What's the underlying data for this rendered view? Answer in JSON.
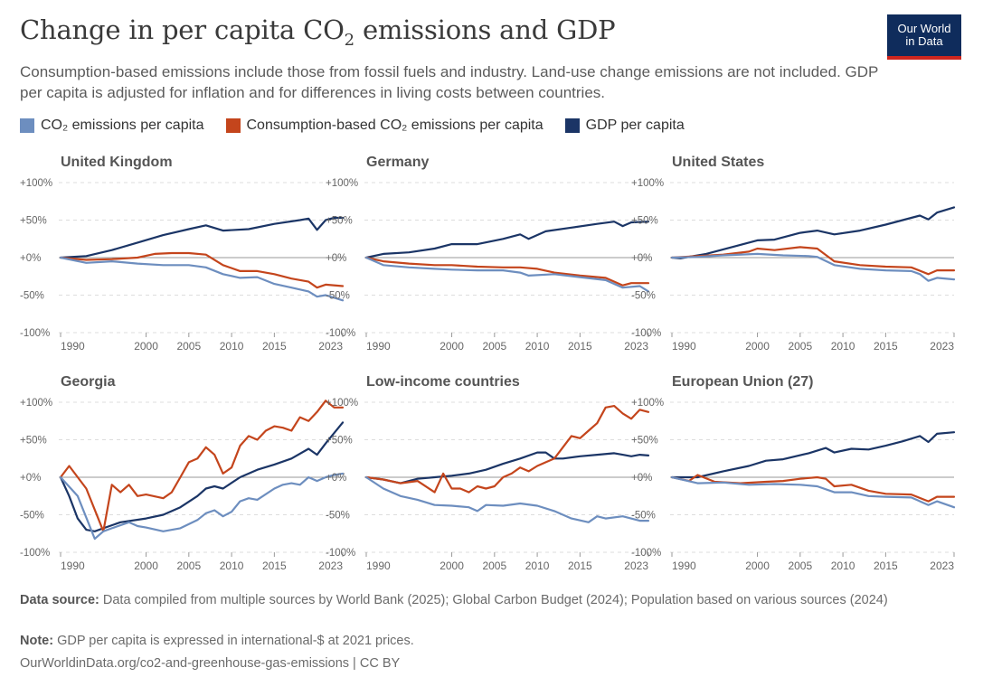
{
  "header": {
    "title_main": "Change in per capita CO",
    "title_sub": "2",
    "title_rest": " emissions and GDP",
    "subtitle": "Consumption-based emissions include those from fossil fuels and industry. Land-use change emissions are not included. GDP per capita is adjusted for inflation and for differences in living costs between countries.",
    "logo_line1": "Our World",
    "logo_line2": "in Data"
  },
  "legend": [
    {
      "label": "CO₂ emissions per capita",
      "color": "#6d8ebf"
    },
    {
      "label": "Consumption-based CO₂ emissions per capita",
      "color": "#c4451c"
    },
    {
      "label": "GDP per capita",
      "color": "#1b3566"
    }
  ],
  "footer": {
    "source_label": "Data source:",
    "source_text": "Data compiled from multiple sources by World Bank (2025); Global Carbon Budget (2024); Population based on various sources (2024)",
    "note_label": "Note:",
    "note_text": "GDP per capita is expressed in international-$ at 2021 prices.",
    "url": "OurWorldinData.org/co2-and-greenhouse-gas-emissions | CC BY"
  },
  "colors": {
    "co2": "#6d8ebf",
    "consumption": "#c4451c",
    "gdp": "#1b3566",
    "grid": "#dddddd",
    "zero": "#999999"
  },
  "chart_data": [
    {
      "type": "line",
      "title": "United Kingdom",
      "x_ticks": [
        "1990",
        "2000",
        "2005",
        "2010",
        "2015",
        "2023"
      ],
      "y_ticks": [
        "+100%",
        "+50%",
        "+0%",
        "-50%",
        "-100%"
      ],
      "ylim": [
        -100,
        100
      ],
      "xlim": [
        1990,
        2023
      ],
      "series": [
        {
          "name": "GDP per capita",
          "x": [
            1990,
            1993,
            1996,
            1999,
            2002,
            2005,
            2007,
            2009,
            2012,
            2015,
            2018,
            2019,
            2020,
            2021,
            2022,
            2023
          ],
          "y": [
            0,
            2,
            10,
            20,
            30,
            38,
            43,
            36,
            38,
            45,
            50,
            52,
            37,
            50,
            53,
            53
          ]
        },
        {
          "name": "Consumption-based CO₂ emissions per capita",
          "x": [
            1990,
            1993,
            1996,
            1999,
            2001,
            2003,
            2005,
            2007,
            2009,
            2011,
            2013,
            2015,
            2017,
            2019,
            2020,
            2021,
            2023
          ],
          "y": [
            0,
            -3,
            -2,
            0,
            5,
            6,
            6,
            4,
            -10,
            -18,
            -18,
            -22,
            -28,
            -32,
            -40,
            -36,
            -38
          ]
        },
        {
          "name": "CO₂ emissions per capita",
          "x": [
            1990,
            1993,
            1996,
            1999,
            2002,
            2005,
            2007,
            2009,
            2011,
            2013,
            2015,
            2017,
            2019,
            2020,
            2021,
            2023
          ],
          "y": [
            0,
            -7,
            -5,
            -8,
            -10,
            -10,
            -13,
            -22,
            -27,
            -26,
            -35,
            -40,
            -45,
            -52,
            -50,
            -57
          ]
        }
      ]
    },
    {
      "type": "line",
      "title": "Germany",
      "x_ticks": [
        "1990",
        "2000",
        "2005",
        "2010",
        "2015",
        "2023"
      ],
      "y_ticks": [
        "+100%",
        "+50%",
        "+0%",
        "-50%",
        "-100%"
      ],
      "ylim": [
        -100,
        100
      ],
      "xlim": [
        1990,
        2023
      ],
      "series": [
        {
          "name": "GDP per capita",
          "x": [
            1990,
            1992,
            1995,
            1998,
            2000,
            2003,
            2006,
            2008,
            2009,
            2011,
            2014,
            2017,
            2019,
            2020,
            2021,
            2023
          ],
          "y": [
            0,
            5,
            7,
            12,
            18,
            18,
            25,
            31,
            25,
            35,
            40,
            45,
            48,
            42,
            47,
            48
          ]
        },
        {
          "name": "Consumption-based CO₂ emissions per capita",
          "x": [
            1990,
            1992,
            1995,
            1998,
            2000,
            2003,
            2006,
            2008,
            2010,
            2012,
            2015,
            2018,
            2020,
            2021,
            2023
          ],
          "y": [
            0,
            -5,
            -8,
            -10,
            -10,
            -12,
            -13,
            -13,
            -15,
            -20,
            -24,
            -27,
            -37,
            -34,
            -34
          ]
        },
        {
          "name": "CO₂ emissions per capita",
          "x": [
            1990,
            1992,
            1995,
            1998,
            2000,
            2003,
            2006,
            2008,
            2009,
            2012,
            2015,
            2018,
            2020,
            2022,
            2023
          ],
          "y": [
            0,
            -10,
            -13,
            -15,
            -16,
            -17,
            -17,
            -20,
            -24,
            -22,
            -26,
            -30,
            -40,
            -38,
            -45
          ]
        }
      ]
    },
    {
      "type": "line",
      "title": "United States",
      "x_ticks": [
        "1990",
        "2000",
        "2005",
        "2010",
        "2015",
        "2023"
      ],
      "y_ticks": [
        "+100%",
        "+50%",
        "+0%",
        "-50%",
        "-100%"
      ],
      "ylim": [
        -100,
        100
      ],
      "xlim": [
        1990,
        2023
      ],
      "series": [
        {
          "name": "GDP per capita",
          "x": [
            1990,
            1991,
            1994,
            1997,
            2000,
            2002,
            2005,
            2007,
            2009,
            2012,
            2015,
            2018,
            2019,
            2020,
            2021,
            2023
          ],
          "y": [
            0,
            -1,
            5,
            14,
            23,
            24,
            33,
            36,
            31,
            36,
            44,
            53,
            56,
            51,
            60,
            67
          ]
        },
        {
          "name": "Consumption-based CO₂ emissions per capita",
          "x": [
            1990,
            1993,
            1996,
            1999,
            2000,
            2002,
            2005,
            2007,
            2009,
            2012,
            2015,
            2018,
            2020,
            2021,
            2023
          ],
          "y": [
            0,
            2,
            4,
            8,
            12,
            10,
            14,
            12,
            -5,
            -10,
            -12,
            -13,
            -22,
            -17,
            -17
          ]
        },
        {
          "name": "CO₂ emissions per capita",
          "x": [
            1990,
            1993,
            1996,
            2000,
            2003,
            2006,
            2007,
            2009,
            2012,
            2015,
            2018,
            2019,
            2020,
            2021,
            2023
          ],
          "y": [
            0,
            1,
            3,
            5,
            3,
            2,
            1,
            -10,
            -15,
            -17,
            -18,
            -22,
            -31,
            -27,
            -29
          ]
        }
      ]
    },
    {
      "type": "line",
      "title": "Georgia",
      "x_ticks": [
        "1990",
        "2000",
        "2005",
        "2010",
        "2015",
        "2023"
      ],
      "y_ticks": [
        "+100%",
        "+50%",
        "+0%",
        "-50%",
        "-100%"
      ],
      "ylim": [
        -100,
        100
      ],
      "xlim": [
        1990,
        2023
      ],
      "series": [
        {
          "name": "GDP per capita",
          "x": [
            1990,
            1991,
            1992,
            1993,
            1994,
            1995,
            1997,
            2000,
            2002,
            2004,
            2006,
            2007,
            2008,
            2009,
            2011,
            2013,
            2015,
            2017,
            2019,
            2020,
            2021,
            2023
          ],
          "y": [
            0,
            -25,
            -55,
            -70,
            -72,
            -68,
            -60,
            -55,
            -50,
            -40,
            -25,
            -15,
            -12,
            -15,
            0,
            10,
            17,
            25,
            38,
            30,
            45,
            73
          ]
        },
        {
          "name": "Consumption-based CO₂ emissions per capita",
          "x": [
            1990,
            1991,
            1993,
            1995,
            1996,
            1997,
            1998,
            1999,
            2000,
            2002,
            2003,
            2004,
            2005,
            2006,
            2007,
            2008,
            2009,
            2010,
            2011,
            2012,
            2013,
            2014,
            2015,
            2016,
            2017,
            2018,
            2019,
            2020,
            2021,
            2022,
            2023
          ],
          "y": [
            0,
            15,
            -15,
            -72,
            -10,
            -20,
            -10,
            -25,
            -23,
            -28,
            -20,
            0,
            20,
            25,
            40,
            30,
            5,
            13,
            42,
            55,
            50,
            62,
            68,
            66,
            62,
            80,
            75,
            87,
            102,
            93,
            93
          ]
        },
        {
          "name": "CO₂ emissions per capita",
          "x": [
            1990,
            1992,
            1994,
            1995,
            1996,
            1998,
            1999,
            2000,
            2002,
            2004,
            2006,
            2007,
            2008,
            2009,
            2010,
            2011,
            2012,
            2013,
            2015,
            2016,
            2017,
            2018,
            2019,
            2020,
            2021,
            2022,
            2023
          ],
          "y": [
            0,
            -25,
            -82,
            -72,
            -68,
            -60,
            -65,
            -67,
            -72,
            -68,
            -57,
            -48,
            -44,
            -52,
            -46,
            -32,
            -28,
            -30,
            -15,
            -10,
            -8,
            -10,
            0,
            -5,
            0,
            3,
            5
          ]
        }
      ]
    },
    {
      "type": "line",
      "title": "Low-income countries",
      "x_ticks": [
        "1990",
        "2000",
        "2005",
        "2010",
        "2015",
        "2023"
      ],
      "y_ticks": [
        "+100%",
        "+50%",
        "+0%",
        "-50%",
        "-100%"
      ],
      "ylim": [
        -100,
        100
      ],
      "xlim": [
        1990,
        2023
      ],
      "series": [
        {
          "name": "GDP per capita",
          "x": [
            1990,
            1992,
            1994,
            1996,
            1998,
            2000,
            2002,
            2004,
            2006,
            2008,
            2010,
            2011,
            2012,
            2013,
            2015,
            2017,
            2019,
            2020,
            2021,
            2022,
            2023
          ],
          "y": [
            0,
            -3,
            -8,
            -2,
            0,
            2,
            5,
            10,
            18,
            25,
            33,
            33,
            25,
            25,
            28,
            30,
            32,
            30,
            28,
            30,
            29
          ]
        },
        {
          "name": "Consumption-based CO₂ emissions per capita",
          "x": [
            1990,
            1992,
            1994,
            1996,
            1998,
            1999,
            2000,
            2001,
            2002,
            2003,
            2004,
            2005,
            2006,
            2007,
            2008,
            2009,
            2010,
            2011,
            2012,
            2013,
            2014,
            2015,
            2016,
            2017,
            2018,
            2019,
            2020,
            2021,
            2022,
            2023
          ],
          "y": [
            0,
            -3,
            -8,
            -5,
            -20,
            5,
            -15,
            -15,
            -20,
            -12,
            -15,
            -12,
            0,
            5,
            13,
            8,
            15,
            20,
            25,
            40,
            55,
            52,
            62,
            72,
            93,
            95,
            85,
            78,
            90,
            87
          ]
        },
        {
          "name": "CO₂ emissions per capita",
          "x": [
            1990,
            1992,
            1994,
            1996,
            1998,
            2000,
            2002,
            2003,
            2004,
            2006,
            2008,
            2010,
            2012,
            2014,
            2016,
            2017,
            2018,
            2020,
            2022,
            2023
          ],
          "y": [
            0,
            -15,
            -25,
            -30,
            -37,
            -38,
            -40,
            -45,
            -37,
            -38,
            -35,
            -38,
            -45,
            -55,
            -60,
            -52,
            -55,
            -52,
            -58,
            -58
          ]
        }
      ]
    },
    {
      "type": "line",
      "title": "European Union (27)",
      "x_ticks": [
        "1990",
        "2000",
        "2005",
        "2010",
        "2015",
        "2023"
      ],
      "y_ticks": [
        "+100%",
        "+50%",
        "+0%",
        "-50%",
        "-100%"
      ],
      "ylim": [
        -100,
        100
      ],
      "xlim": [
        1990,
        2023
      ],
      "series": [
        {
          "name": "GDP per capita",
          "x": [
            1990,
            1993,
            1996,
            1999,
            2001,
            2003,
            2006,
            2008,
            2009,
            2011,
            2013,
            2015,
            2017,
            2019,
            2020,
            2021,
            2023
          ],
          "y": [
            0,
            0,
            8,
            15,
            22,
            24,
            32,
            39,
            33,
            38,
            37,
            42,
            48,
            55,
            47,
            58,
            60
          ]
        },
        {
          "name": "Consumption-based CO₂ emissions per capita",
          "x": [
            1990,
            1992,
            1993,
            1995,
            1998,
            2001,
            2003,
            2005,
            2007,
            2008,
            2009,
            2011,
            2013,
            2015,
            2018,
            2020,
            2021,
            2023
          ],
          "y": [
            0,
            -5,
            3,
            -6,
            -8,
            -6,
            -5,
            -2,
            0,
            -2,
            -12,
            -10,
            -18,
            -22,
            -23,
            -32,
            -26,
            -26
          ]
        },
        {
          "name": "CO₂ emissions per capita",
          "x": [
            1990,
            1993,
            1996,
            1999,
            2002,
            2005,
            2007,
            2009,
            2011,
            2013,
            2015,
            2018,
            2020,
            2021,
            2023
          ],
          "y": [
            0,
            -8,
            -7,
            -10,
            -9,
            -10,
            -12,
            -20,
            -20,
            -25,
            -26,
            -27,
            -37,
            -32,
            -40
          ]
        }
      ]
    }
  ]
}
